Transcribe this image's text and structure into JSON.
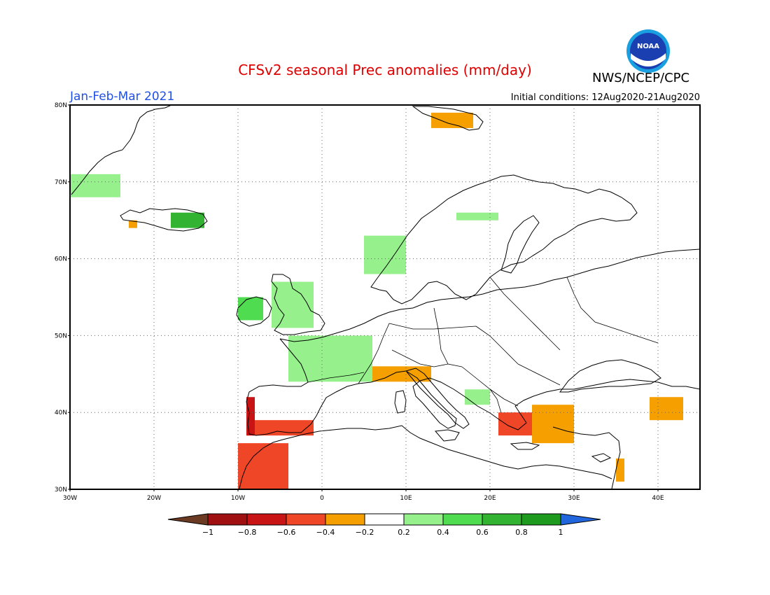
{
  "header": {
    "title": "CFSv2 seasonal Prec anomalies (mm/day)",
    "agency": "NWS/NCEP/CPC",
    "season": "Jan-Feb-Mar 2021",
    "initial_conditions": "Initial conditions: 12Aug2020-21Aug2020",
    "logo_text": "NOAA"
  },
  "map": {
    "lon_range": [
      -30,
      45
    ],
    "lat_range": [
      30,
      80
    ],
    "lat_labels": [
      {
        "lat": 80,
        "label": "80N"
      },
      {
        "lat": 70,
        "label": "70N"
      },
      {
        "lat": 60,
        "label": "60N"
      },
      {
        "lat": 50,
        "label": "50N"
      },
      {
        "lat": 40,
        "label": "40N"
      },
      {
        "lat": 30,
        "label": "30N"
      }
    ],
    "lon_labels": [
      {
        "lon": -30,
        "label": "30W"
      },
      {
        "lon": -20,
        "label": "20W"
      },
      {
        "lon": -10,
        "label": "10W"
      },
      {
        "lon": 0,
        "label": "0"
      },
      {
        "lon": 10,
        "label": "10E"
      },
      {
        "lon": 20,
        "label": "20E"
      },
      {
        "lon": 30,
        "label": "30E"
      },
      {
        "lon": 40,
        "label": "40E"
      }
    ],
    "gridlines": "dotted",
    "anomaly_regions": [
      {
        "name": "greenland-east-coast",
        "lon": [
          -30,
          -24
        ],
        "lat": [
          68,
          71
        ],
        "value": 0.3
      },
      {
        "name": "iceland",
        "lon": [
          -18,
          -14
        ],
        "lat": [
          64,
          66
        ],
        "value": 0.7
      },
      {
        "name": "iceland-west",
        "lon": [
          -23,
          -22
        ],
        "lat": [
          64,
          65
        ],
        "value": -0.3
      },
      {
        "name": "ireland",
        "lon": [
          -10,
          -7
        ],
        "lat": [
          52,
          55
        ],
        "value": 0.5
      },
      {
        "name": "britain",
        "lon": [
          -6,
          -1
        ],
        "lat": [
          51,
          57
        ],
        "value": 0.3
      },
      {
        "name": "france",
        "lon": [
          -4,
          6
        ],
        "lat": [
          44,
          50
        ],
        "value": 0.3
      },
      {
        "name": "norway-south",
        "lon": [
          5,
          10
        ],
        "lat": [
          58,
          63
        ],
        "value": 0.3
      },
      {
        "name": "sweden-north",
        "lon": [
          16,
          21
        ],
        "lat": [
          65,
          66
        ],
        "value": 0.3
      },
      {
        "name": "svalbard",
        "lon": [
          13,
          18
        ],
        "lat": [
          77,
          79
        ],
        "value": -0.3
      },
      {
        "name": "iberia-south",
        "lon": [
          -9,
          -1
        ],
        "lat": [
          37,
          39
        ],
        "value": -0.5
      },
      {
        "name": "portugal",
        "lon": [
          -9,
          -8
        ],
        "lat": [
          37,
          42
        ],
        "value": -0.7
      },
      {
        "name": "morocco",
        "lon": [
          -10,
          -4
        ],
        "lat": [
          30,
          36
        ],
        "value": -0.6
      },
      {
        "name": "alps",
        "lon": [
          6,
          13
        ],
        "lat": [
          44,
          46
        ],
        "value": -0.3
      },
      {
        "name": "greece",
        "lon": [
          21,
          25
        ],
        "lat": [
          37,
          40
        ],
        "value": -0.6
      },
      {
        "name": "turkey-west",
        "lon": [
          25,
          30
        ],
        "lat": [
          36,
          41
        ],
        "value": -0.3
      },
      {
        "name": "caucasus",
        "lon": [
          39,
          43
        ],
        "lat": [
          39,
          42
        ],
        "value": -0.4
      },
      {
        "name": "levant",
        "lon": [
          35,
          36
        ],
        "lat": [
          31,
          34
        ],
        "value": -0.3
      },
      {
        "name": "balkans",
        "lon": [
          17,
          20
        ],
        "lat": [
          41,
          43
        ],
        "value": 0.3
      }
    ]
  },
  "colorbar": {
    "labels": [
      "−1",
      "−0.8",
      "−0.6",
      "−0.4",
      "−0.2",
      "0.2",
      "0.4",
      "0.6",
      "0.8",
      "1"
    ],
    "colors": [
      "#a01010",
      "#c81414",
      "#f04628",
      "#f5a000",
      "#ffffff",
      "#96f08c",
      "#50dc50",
      "#32b432",
      "#1e9b1e"
    ],
    "low_arrow_color": "#6b3a22",
    "high_arrow_color": "#2266dd"
  }
}
